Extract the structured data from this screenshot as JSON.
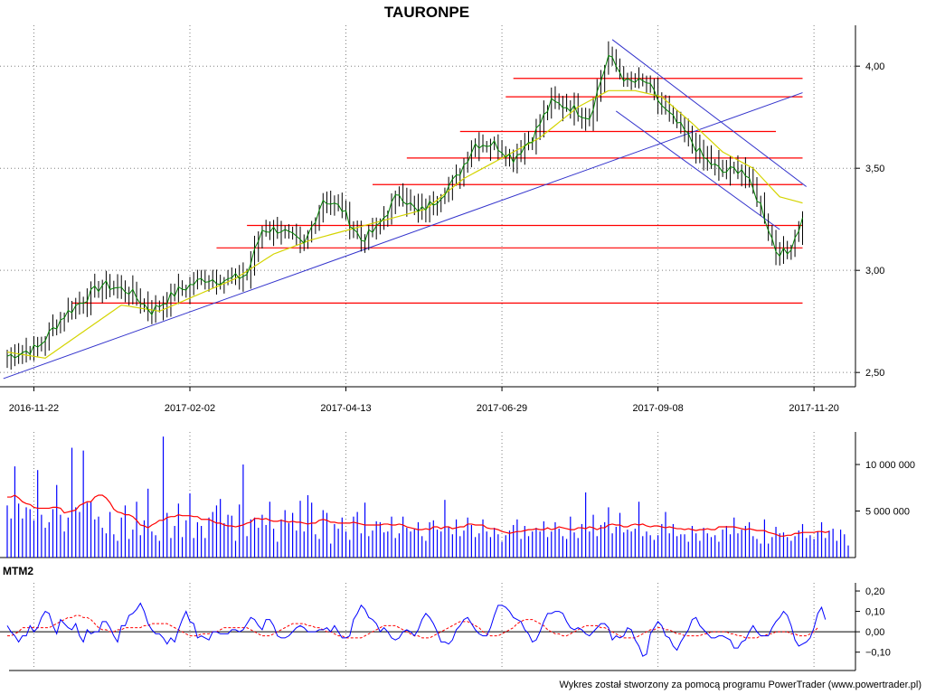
{
  "chart_data": {
    "type": "candlestick",
    "title": "TAURONPE",
    "price": {
      "yticks": [
        2.5,
        3.0,
        3.5,
        4.0
      ],
      "ytick_labels": [
        "2,50",
        "3,00",
        "3,50",
        "4,00"
      ],
      "ylim": [
        2.43,
        4.2
      ],
      "xtick_labels": [
        "2016-11-22",
        "2017-02-02",
        "2017-04-13",
        "2017-06-29",
        "2017-09-08",
        "2017-11-20"
      ],
      "close_path": [
        [
          0,
          2.58
        ],
        [
          8,
          2.62
        ],
        [
          15,
          2.78
        ],
        [
          25,
          2.93
        ],
        [
          32,
          2.9
        ],
        [
          38,
          2.8
        ],
        [
          45,
          2.9
        ],
        [
          52,
          2.96
        ],
        [
          58,
          2.95
        ],
        [
          63,
          2.98
        ],
        [
          67,
          3.2
        ],
        [
          72,
          3.2
        ],
        [
          78,
          3.12
        ],
        [
          83,
          3.35
        ],
        [
          88,
          3.3
        ],
        [
          93,
          3.15
        ],
        [
          97,
          3.2
        ],
        [
          103,
          3.38
        ],
        [
          108,
          3.28
        ],
        [
          113,
          3.35
        ],
        [
          118,
          3.45
        ],
        [
          123,
          3.62
        ],
        [
          128,
          3.62
        ],
        [
          133,
          3.55
        ],
        [
          138,
          3.65
        ],
        [
          143,
          3.82
        ],
        [
          148,
          3.8
        ],
        [
          153,
          3.75
        ],
        [
          158,
          4.05
        ],
        [
          163,
          3.92
        ],
        [
          168,
          3.92
        ],
        [
          173,
          3.78
        ],
        [
          178,
          3.68
        ],
        [
          183,
          3.55
        ],
        [
          188,
          3.48
        ],
        [
          193,
          3.5
        ],
        [
          198,
          3.32
        ],
        [
          202,
          3.1
        ],
        [
          205,
          3.08
        ],
        [
          209,
          3.25
        ]
      ],
      "ma_path": [
        [
          0,
          2.6
        ],
        [
          10,
          2.57
        ],
        [
          20,
          2.7
        ],
        [
          30,
          2.83
        ],
        [
          40,
          2.8
        ],
        [
          50,
          2.88
        ],
        [
          60,
          2.96
        ],
        [
          70,
          3.08
        ],
        [
          80,
          3.15
        ],
        [
          90,
          3.2
        ],
        [
          100,
          3.25
        ],
        [
          110,
          3.3
        ],
        [
          120,
          3.45
        ],
        [
          130,
          3.55
        ],
        [
          140,
          3.65
        ],
        [
          150,
          3.8
        ],
        [
          158,
          3.88
        ],
        [
          165,
          3.88
        ],
        [
          172,
          3.85
        ],
        [
          180,
          3.72
        ],
        [
          188,
          3.58
        ],
        [
          196,
          3.5
        ],
        [
          203,
          3.36
        ],
        [
          209,
          3.33
        ]
      ],
      "horizontal_levels": [
        {
          "value": 2.84,
          "from": 17,
          "to": 209
        },
        {
          "value": 3.11,
          "from": 55,
          "to": 209
        },
        {
          "value": 3.22,
          "from": 63,
          "to": 209
        },
        {
          "value": 3.42,
          "from": 96,
          "to": 209
        },
        {
          "value": 3.55,
          "from": 105,
          "to": 209
        },
        {
          "value": 3.68,
          "from": 119,
          "to": 202
        },
        {
          "value": 3.85,
          "from": 131,
          "to": 209
        },
        {
          "value": 3.94,
          "from": 133,
          "to": 209
        }
      ],
      "trendlines": [
        {
          "from": [
            -1,
            2.47
          ],
          "to": [
            209,
            3.87
          ]
        },
        {
          "from": [
            159,
            4.13
          ],
          "to": [
            210,
            3.41
          ]
        },
        {
          "from": [
            160,
            3.78
          ],
          "to": [
            203,
            3.2
          ]
        }
      ]
    },
    "volume": {
      "yticks": [
        5000000,
        10000000
      ],
      "ytick_labels": [
        "5 000 000",
        "10 000 000"
      ],
      "ylim": [
        0,
        13500000
      ],
      "values": [
        5600000,
        4200000,
        9800000,
        5800000,
        4200000,
        5400000,
        5200000,
        4000000,
        9400000,
        4600000,
        3200000,
        3800000,
        5200000,
        7800000,
        4600000,
        2800000,
        4300000,
        11800000,
        5400000,
        4900000,
        11500000,
        5900000,
        6000000,
        4100000,
        4400000,
        3200000,
        2600000,
        4900000,
        2500000,
        1800000,
        4300000,
        5600000,
        2000000,
        3000000,
        6000000,
        2400000,
        4000000,
        7400000,
        2800000,
        2400000,
        1800000,
        13000000,
        4800000,
        2100000,
        3400000,
        5800000,
        2200000,
        4000000,
        6900000,
        2100000,
        3800000,
        3400000,
        2100000,
        4300000,
        4900000,
        5600000,
        6300000,
        3700000,
        4600000,
        4500000,
        1800000,
        5700000,
        10000000,
        2300000,
        4100000,
        4300000,
        3200000,
        4600000,
        3500000,
        6000000,
        3100000,
        1700000,
        4100000,
        5100000,
        3700000,
        4800000,
        2900000,
        6100000,
        2800000,
        6700000,
        5900000,
        2500000,
        2000000,
        5100000,
        4800000,
        1500000,
        3600000,
        3100000,
        4300000,
        2800000,
        1900000,
        4400000,
        4900000,
        2600000,
        5900000,
        2300000,
        2900000,
        3900000,
        3800000,
        2700000,
        2800000,
        4400000,
        2100000,
        2600000,
        4400000,
        3200000,
        2800000,
        3100000,
        3800000,
        2300000,
        1800000,
        3800000,
        4000000,
        3000000,
        2800000,
        6200000,
        3300000,
        2500000,
        4100000,
        2300000,
        2900000,
        4300000,
        3500000,
        2200000,
        2600000,
        4100000,
        2800000,
        2200000,
        3200000,
        2500000,
        1700000,
        2400000,
        2900000,
        3500000,
        4100000,
        2000000,
        3400000,
        2300000,
        2800000,
        3200000,
        2800000,
        3900000,
        2200000,
        2800000,
        3800000,
        3100000,
        2300000,
        2000000,
        4400000,
        2700000,
        2100000,
        3600000,
        7000000,
        2800000,
        4600000,
        2300000,
        3500000,
        3800000,
        5400000,
        2600000,
        3300000,
        4800000,
        2700000,
        3000000,
        2800000,
        3100000,
        6000000,
        2300000,
        2800000,
        2400000,
        1900000,
        2400000,
        3600000,
        4900000,
        2600000,
        3600000,
        2300000,
        2500000,
        2500000,
        1700000,
        3400000,
        2600000,
        1800000,
        3200000,
        2600000,
        2200000,
        2400000,
        1700000,
        3000000,
        3400000,
        2500000,
        4300000,
        2600000,
        3000000,
        3400000,
        3800000,
        2300000,
        2000000,
        1500000,
        4100000,
        1500000,
        2200000,
        3300000,
        2600000,
        2700000,
        2200000,
        1800000,
        2300000,
        2900000,
        3600000,
        2100000,
        2400000,
        2000000,
        2800000,
        3800000,
        2100000,
        2900000,
        3100000,
        1800000,
        3000000,
        2500000,
        1300000
      ],
      "ma": [
        6500000,
        6500000,
        6700000,
        6400000,
        6000000,
        5800000,
        5700000,
        5400000,
        5300000,
        5300000,
        5300000,
        5300000,
        5400000,
        5400000,
        5300000,
        4800000,
        4900000,
        5000000,
        5100000,
        5600000,
        5800000,
        6000000,
        6000000,
        6500000,
        6700000,
        6700000,
        6400000,
        5900000,
        5200000,
        4900000,
        4800000,
        4600000,
        4600000,
        4400000,
        4000000,
        3500000,
        3400000,
        3200000,
        3500000,
        3700000,
        4000000,
        4000000,
        4300000,
        4400000,
        4400000,
        4600000,
        4500000,
        4500000,
        4500000,
        4400000,
        4400000,
        4100000,
        4100000,
        4100000,
        3900000,
        3700000,
        3700000,
        3500000,
        3400000,
        3400000,
        3300000,
        3400000,
        3500000,
        3700000,
        3800000,
        4200000,
        4200000,
        4100000,
        4200000,
        4000000,
        3900000,
        3900000,
        4000000,
        3900000,
        3800000,
        3900000,
        3800000,
        3800000,
        3700000,
        3600000,
        3700000,
        3700000,
        4000000,
        4100000,
        4000000,
        3800000,
        3800000,
        3700000,
        3700000,
        3700000,
        3700000,
        3800000,
        3700000,
        3600000,
        3500000,
        3500000,
        3500000,
        3500000,
        3500000,
        3600000,
        3600000,
        3500000,
        3500000,
        3600000,
        3500000,
        3300000,
        3200000,
        3100000,
        3000000,
        3000000,
        3100000,
        3000000,
        3300000,
        3300000,
        3100000,
        3300000,
        3300000,
        3100000,
        3200000,
        3300000,
        3300000,
        3600000,
        3600000,
        3500000,
        3500000,
        3500000,
        3200000,
        3100000,
        3100000,
        3000000,
        2800000,
        2700000,
        2600000,
        2700000,
        2800000,
        2800000,
        2900000,
        3000000,
        3000000,
        3100000,
        3000000,
        3000000,
        3200000,
        3000000,
        3100000,
        3300000,
        3200000,
        3100000,
        3000000,
        3000000,
        3200000,
        3200000,
        3100000,
        3300000,
        3200000,
        3000000,
        3200000,
        3200000,
        3500000,
        3600000,
        3500000,
        3500000,
        3300000,
        3300000,
        3500000,
        3600000,
        3500000,
        3600000,
        3400000,
        3300000,
        3400000,
        3400000,
        3300000,
        3200000,
        3300000,
        3200000,
        3100000,
        3100000,
        3000000,
        3100000,
        3000000,
        2900000,
        3000000,
        3000000,
        3100000,
        3000000,
        3000000,
        3300000,
        3300000,
        3300000,
        3300000,
        3300000,
        3200000,
        3100000,
        3000000,
        3100000,
        3000000,
        2900000,
        2900000,
        2900000,
        2700000,
        2600000,
        2500000,
        2300000,
        2300000,
        2400000,
        2400000,
        2600000,
        2600000,
        2700000,
        2700000,
        2700000,
        2700000,
        2800000,
        2800000,
        2700000,
        2800000
      ]
    },
    "momentum": {
      "label": "MTM2",
      "yticks": [
        0.2,
        0.1,
        0.0,
        -0.1
      ],
      "ytick_labels": [
        "0,20",
        "0,10",
        "0,00",
        "−0,10"
      ],
      "ylim": [
        -0.19,
        0.24
      ],
      "values": [
        0.03,
        0.0,
        -0.02,
        -0.05,
        -0.02,
        -0.02,
        0.03,
        0.0,
        0.02,
        0.07,
        0.1,
        0.09,
        0.03,
        -0.01,
        0.06,
        0.04,
        0.02,
        0.01,
        0.04,
        -0.02,
        -0.05,
        0.01,
        -0.01,
        0.0,
        0.0,
        0.05,
        0.05,
        0.02,
        -0.02,
        -0.05,
        0.03,
        0.03,
        0.08,
        0.09,
        0.11,
        0.14,
        0.1,
        0.04,
        0.01,
        -0.01,
        -0.01,
        -0.03,
        -0.06,
        -0.03,
        -0.05,
        0.01,
        0.06,
        0.1,
        0.05,
        0.04,
        -0.03,
        -0.02,
        -0.03,
        -0.04,
        0.0,
        0.0,
        -0.01,
        -0.01,
        -0.01,
        0.01,
        0.01,
        0.0,
        0.01,
        0.04,
        0.07,
        0.06,
        0.03,
        0.01,
        0.06,
        0.06,
        0.03,
        -0.02,
        -0.03,
        -0.03,
        -0.02,
        0.0,
        0.02,
        0.03,
        0.02,
        0.0,
        0.0,
        0.0,
        0.01,
        0.01,
        0.02,
        0.0,
        0.03,
        0.0,
        -0.03,
        -0.03,
        -0.02,
        0.06,
        0.09,
        0.13,
        0.11,
        0.07,
        0.06,
        0.04,
        0.0,
        0.02,
        0.0,
        -0.03,
        -0.04,
        -0.03,
        0.0,
        0.01,
        0.0,
        -0.02,
        0.01,
        0.06,
        0.09,
        0.07,
        0.04,
        0.0,
        -0.05,
        -0.05,
        -0.06,
        -0.04,
        0.01,
        0.03,
        0.06,
        0.07,
        0.04,
        0.01,
        -0.01,
        -0.02,
        -0.02,
        0.02,
        0.08,
        0.13,
        0.13,
        0.12,
        0.1,
        0.07,
        0.06,
        0.05,
        0.01,
        -0.01,
        -0.05,
        -0.04,
        0.0,
        0.05,
        0.09,
        0.09,
        0.1,
        0.1,
        0.09,
        0.05,
        0.02,
        0.01,
        0.02,
        0.01,
        -0.01,
        -0.02,
        0.0,
        0.02,
        0.04,
        0.04,
        0.02,
        -0.04,
        -0.02,
        -0.03,
        -0.02,
        0.02,
        0.01,
        -0.04,
        -0.07,
        -0.12,
        -0.11,
        -0.01,
        0.02,
        0.05,
        0.03,
        -0.02,
        -0.03,
        -0.07,
        -0.09,
        -0.05,
        -0.02,
        0.01,
        0.06,
        0.07,
        0.03,
        0.01,
        -0.01,
        -0.03,
        -0.03,
        -0.02,
        -0.02,
        -0.03,
        -0.04,
        -0.08,
        -0.08,
        -0.05,
        -0.04,
        0.0,
        0.03,
        0.0,
        -0.02,
        -0.02,
        -0.02,
        0.02,
        0.05,
        0.07,
        0.1,
        0.08,
        0.03,
        -0.04,
        -0.07,
        -0.06,
        -0.05,
        -0.03,
        0.02,
        0.09,
        0.12,
        0.06
      ],
      "signal": [
        -0.02,
        -0.02,
        -0.01,
        0.0,
        0.02,
        0.02,
        0.02,
        0.02,
        0.02,
        0.02,
        0.02,
        0.02,
        0.03,
        0.04,
        0.05,
        0.06,
        0.07,
        0.07,
        0.08,
        0.08,
        0.07,
        0.07,
        0.06,
        0.04,
        0.02,
        0.01,
        0.01,
        0.0,
        0.0,
        0.01,
        0.01,
        0.02,
        0.02,
        0.02,
        0.02,
        0.02,
        0.03,
        0.03,
        0.04,
        0.04,
        0.04,
        0.04,
        0.04,
        0.03,
        0.02,
        0.01,
        0.0,
        -0.01,
        -0.02,
        -0.02,
        -0.02,
        -0.01,
        -0.01,
        -0.01,
        0.0,
        0.0,
        0.01,
        0.02,
        0.02,
        0.02,
        0.02,
        0.02,
        0.02,
        0.02,
        0.01,
        0.0,
        -0.01,
        -0.02,
        -0.02,
        -0.02,
        -0.01,
        0.0,
        0.01,
        0.02,
        0.03,
        0.04,
        0.04,
        0.04,
        0.04,
        0.03,
        0.03,
        0.02,
        0.02,
        0.01,
        0.0,
        0.0,
        -0.01,
        -0.02,
        -0.02,
        -0.03,
        -0.03,
        -0.03,
        -0.03,
        -0.03,
        -0.02,
        -0.01,
        0.0,
        0.01,
        0.02,
        0.03,
        0.03,
        0.03,
        0.03,
        0.02,
        0.01,
        0.0,
        -0.01,
        -0.02,
        -0.02,
        -0.03,
        -0.03,
        -0.03,
        -0.02,
        -0.01,
        0.0,
        0.01,
        0.02,
        0.03,
        0.04,
        0.05,
        0.05,
        0.05,
        0.04,
        0.03,
        0.02,
        0.0,
        -0.01,
        -0.02,
        -0.02,
        -0.02,
        -0.01,
        0.0,
        0.01,
        0.02,
        0.04,
        0.05,
        0.06,
        0.06,
        0.06,
        0.05,
        0.04,
        0.03,
        0.01,
        0.0,
        -0.01,
        -0.01,
        -0.02,
        -0.02,
        -0.01,
        0.0,
        0.01,
        0.02,
        0.03,
        0.03,
        0.03,
        0.03,
        0.02,
        0.02,
        0.01,
        0.0,
        -0.01,
        -0.02,
        -0.03,
        -0.03,
        -0.03,
        -0.03,
        -0.02,
        -0.01,
        0.0,
        0.01,
        0.01,
        0.02,
        0.02,
        0.01,
        0.01,
        0.0,
        -0.01,
        -0.01,
        -0.02,
        -0.02,
        -0.02,
        -0.02,
        -0.02,
        -0.01,
        -0.01,
        0.0,
        0.0,
        0.0,
        0.0,
        0.0,
        -0.01,
        -0.01,
        -0.02,
        -0.02,
        -0.03,
        -0.03,
        -0.03,
        -0.03,
        -0.02,
        -0.02,
        -0.01,
        -0.01,
        0.0,
        0.0,
        0.0,
        0.0,
        -0.01,
        -0.01,
        -0.02,
        -0.02,
        -0.02,
        -0.01,
        0.0,
        0.02
      ]
    },
    "grid": true,
    "colors": {
      "candle": "#000000",
      "close_line": "#008000",
      "moving_average": "#d4d400",
      "support_resistance": "#ff0000",
      "trendline": "#3333cc",
      "volume_bars": "#0000ff",
      "volume_ma": "#ff0000",
      "momentum": "#0000ff",
      "momentum_signal": "#ff0000",
      "grid": "#808080"
    }
  },
  "footer": {
    "credit": "Wykres został stworzony za pomocą programu PowerTrader (www.powertrader.pl)"
  }
}
